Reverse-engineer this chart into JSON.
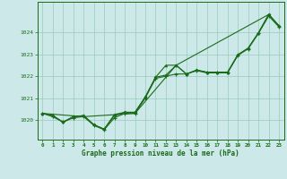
{
  "title": "Graphe pression niveau de la mer (hPa)",
  "bg_color": "#cce8e8",
  "plot_bg_color": "#cce8e8",
  "grid_color": "#99ccbb",
  "line_color": "#1a6b1a",
  "xlim": [
    -0.5,
    23.5
  ],
  "ylim": [
    1019.1,
    1025.4
  ],
  "yticks": [
    1020,
    1021,
    1022,
    1023,
    1024
  ],
  "xticks": [
    0,
    1,
    2,
    3,
    4,
    5,
    6,
    7,
    8,
    9,
    10,
    11,
    12,
    13,
    14,
    15,
    16,
    17,
    18,
    19,
    20,
    21,
    22,
    23
  ],
  "series1_x": [
    0,
    1,
    2,
    3,
    4,
    5,
    6,
    7,
    8,
    9,
    10,
    11,
    12,
    13,
    14,
    15,
    16,
    17,
    18,
    19,
    20,
    21,
    22,
    23
  ],
  "series1_y": [
    1020.3,
    1020.2,
    1019.9,
    1020.15,
    1020.2,
    1019.78,
    1019.58,
    1020.2,
    1020.35,
    1020.35,
    1021.05,
    1021.95,
    1022.05,
    1022.5,
    1022.1,
    1022.28,
    1022.18,
    1022.18,
    1022.18,
    1022.98,
    1023.28,
    1023.98,
    1024.82,
    1024.3
  ],
  "series2_x": [
    0,
    1,
    2,
    3,
    4,
    5,
    6,
    7,
    8,
    9,
    10,
    11,
    12,
    13,
    14,
    15,
    16,
    17,
    18,
    19,
    20,
    21,
    22,
    23
  ],
  "series2_y": [
    1020.3,
    1020.2,
    1019.9,
    1020.15,
    1020.2,
    1019.78,
    1019.58,
    1020.25,
    1020.35,
    1020.35,
    1021.05,
    1021.95,
    1022.5,
    1022.5,
    1022.1,
    1022.28,
    1022.18,
    1022.18,
    1022.18,
    1022.98,
    1023.28,
    1023.98,
    1024.82,
    1024.3
  ],
  "series3_x": [
    0,
    1,
    2,
    3,
    4,
    5,
    6,
    7,
    8,
    9,
    10,
    11,
    12,
    13,
    14,
    15,
    16,
    17,
    18,
    19,
    20,
    21,
    22,
    23
  ],
  "series3_y": [
    1020.3,
    1020.15,
    1019.9,
    1020.1,
    1020.15,
    1019.75,
    1019.55,
    1020.1,
    1020.3,
    1020.3,
    1021.0,
    1021.9,
    1022.0,
    1022.1,
    1022.1,
    1022.25,
    1022.15,
    1022.15,
    1022.15,
    1022.95,
    1023.25,
    1023.95,
    1024.75,
    1024.25
  ],
  "series4_x": [
    0,
    4,
    9,
    13,
    22,
    23
  ],
  "series4_y": [
    1020.3,
    1020.15,
    1020.3,
    1022.5,
    1024.82,
    1024.3
  ]
}
